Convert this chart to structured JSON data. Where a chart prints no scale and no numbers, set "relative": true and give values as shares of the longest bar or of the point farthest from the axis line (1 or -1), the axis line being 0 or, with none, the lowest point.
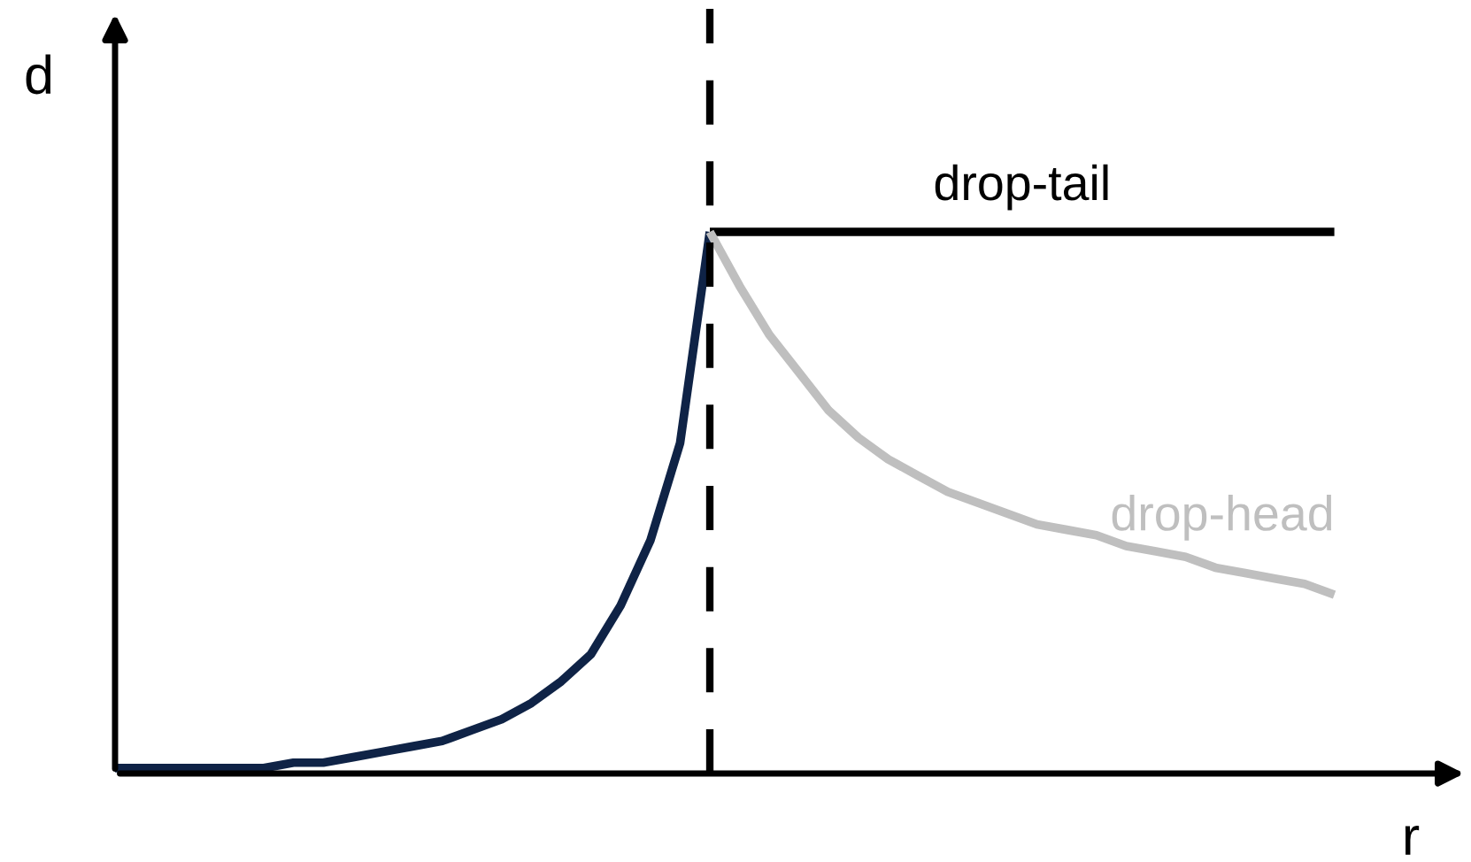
{
  "chart_data": {
    "type": "line",
    "relative": true,
    "xlabel": "r",
    "ylabel": "d",
    "tick_labels": false,
    "legend": false,
    "marker": "none",
    "categories": [
      null,
      null,
      null,
      null,
      null,
      null,
      null,
      null,
      null,
      null,
      null,
      null,
      null,
      null,
      null,
      null,
      null,
      null,
      null,
      null,
      null,
      null,
      null,
      null,
      null,
      null,
      null,
      null,
      null,
      null,
      null,
      null,
      null,
      null,
      null,
      null,
      null,
      null,
      null,
      null,
      null,
      null
    ],
    "series": [
      {
        "color": "#0f2346",
        "values": [
          0.01,
          0.01,
          0.01,
          0.01,
          0.01,
          0.01,
          0.02,
          0.02,
          0.03,
          0.04,
          0.05,
          0.06,
          0.08,
          0.1,
          0.13,
          0.17,
          0.22,
          0.31,
          0.43,
          0.61,
          1,
          null,
          null,
          null,
          null,
          null,
          null,
          null,
          null,
          null,
          null,
          null,
          null,
          null,
          null,
          null,
          null,
          null,
          null,
          null,
          null,
          null
        ]
      },
      {
        "name": "drop-tail",
        "color": "#000000",
        "values": [
          null,
          null,
          null,
          null,
          null,
          null,
          null,
          null,
          null,
          null,
          null,
          null,
          null,
          null,
          null,
          null,
          null,
          null,
          null,
          null,
          1,
          1,
          1,
          1,
          1,
          1,
          1,
          1,
          1,
          1,
          1,
          1,
          1,
          1,
          1,
          1,
          1,
          1,
          1,
          1,
          1,
          1
        ]
      },
      {
        "name": "drop-head",
        "color": "#bfbfbf",
        "values": [
          null,
          null,
          null,
          null,
          null,
          null,
          null,
          null,
          null,
          null,
          null,
          null,
          null,
          null,
          null,
          null,
          null,
          null,
          null,
          null,
          1,
          0.9,
          0.81,
          0.74,
          0.67,
          0.62,
          0.58,
          0.55,
          0.52,
          0.5,
          0.48,
          0.46,
          0.45,
          0.44,
          0.42,
          0.41,
          0.4,
          0.38,
          0.37,
          0.36,
          0.35,
          0.33
        ]
      }
    ]
  }
}
